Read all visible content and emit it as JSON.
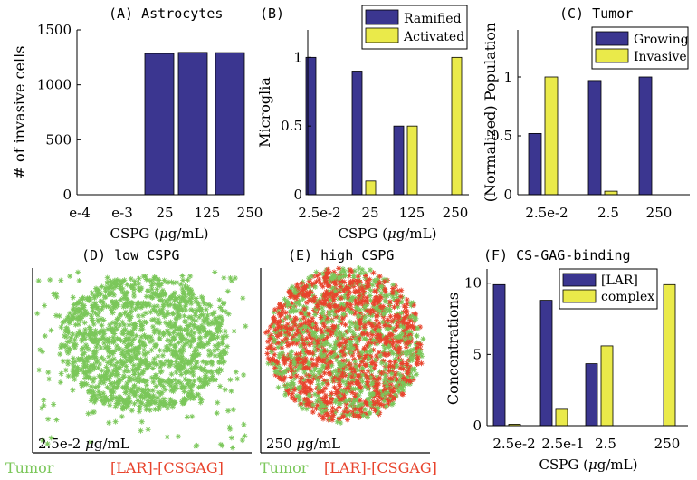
{
  "colors": {
    "primary": "#3b3690",
    "secondary": "#eaea4a",
    "tumor": "#7bc75a",
    "lar": "#e8432c"
  },
  "chart_data": [
    {
      "type": "bar",
      "id": "A",
      "title": "(A) Astrocytes",
      "ylabel": "# of invasive cells",
      "xlabel": "CSPG (μg/mL)",
      "categories": [
        "e-4",
        "e-3",
        "25",
        "125",
        "250"
      ],
      "values": [
        0,
        0,
        1285,
        1295,
        1293
      ],
      "ylim": [
        0,
        1500
      ],
      "yticks": [
        0,
        500,
        1000,
        1500
      ]
    },
    {
      "type": "bar",
      "id": "B",
      "title": "(B)",
      "ylabel": "Microglia",
      "xlabel": "CSPG (μg/mL)",
      "categories": [
        "2.5e-2",
        "25",
        "125",
        "250"
      ],
      "series": [
        {
          "name": "Ramified",
          "values": [
            1.0,
            0.9,
            0.5,
            0.0
          ]
        },
        {
          "name": "Activated",
          "values": [
            0.0,
            0.1,
            0.5,
            1.0
          ]
        }
      ],
      "ylim": [
        0,
        1.2
      ],
      "yticks": [
        "0",
        "0.5",
        "1"
      ],
      "legend": "top-right"
    },
    {
      "type": "bar",
      "id": "C",
      "title": "(C) Tumor",
      "ylabel": "(Normalized) Population",
      "xlabel": "",
      "categories": [
        "2.5e-2",
        "2.5",
        "250"
      ],
      "series": [
        {
          "name": "Growing",
          "values": [
            0.52,
            0.97,
            1.0
          ]
        },
        {
          "name": "Invasive",
          "values": [
            1.0,
            0.03,
            0.0
          ]
        }
      ],
      "ylim": [
        0,
        1.4
      ],
      "yticks": [
        "0",
        "0.5",
        "1"
      ],
      "legend": "top-right"
    },
    {
      "type": "scatter",
      "id": "D",
      "title": "(D) low CSPG",
      "annotation": "2.5e-2 μg/mL",
      "series": [
        {
          "name": "Tumor"
        },
        {
          "name": "[LAR]-[CSGAG]"
        }
      ]
    },
    {
      "type": "scatter",
      "id": "E",
      "title": "(E) high CSPG",
      "annotation": "250 μg/mL",
      "series": [
        {
          "name": "Tumor"
        },
        {
          "name": "[LAR]-[CSGAG]"
        }
      ]
    },
    {
      "type": "bar",
      "id": "F",
      "title": "(F) CS-GAG-binding",
      "ylabel": "Concentrations",
      "xlabel": "CSPG (μg/mL)",
      "categories": [
        "2.5e-2",
        "2.5e-1",
        "2.5",
        "250"
      ],
      "series": [
        {
          "name": "[LAR]",
          "values": [
            9.9,
            8.8,
            4.35,
            0.0
          ]
        },
        {
          "name": "complex",
          "values": [
            0.1,
            1.15,
            5.6,
            9.9
          ]
        }
      ],
      "ylim": [
        0,
        11
      ],
      "yticks": [
        "0",
        "5",
        "10"
      ],
      "legend": "top-right"
    }
  ]
}
